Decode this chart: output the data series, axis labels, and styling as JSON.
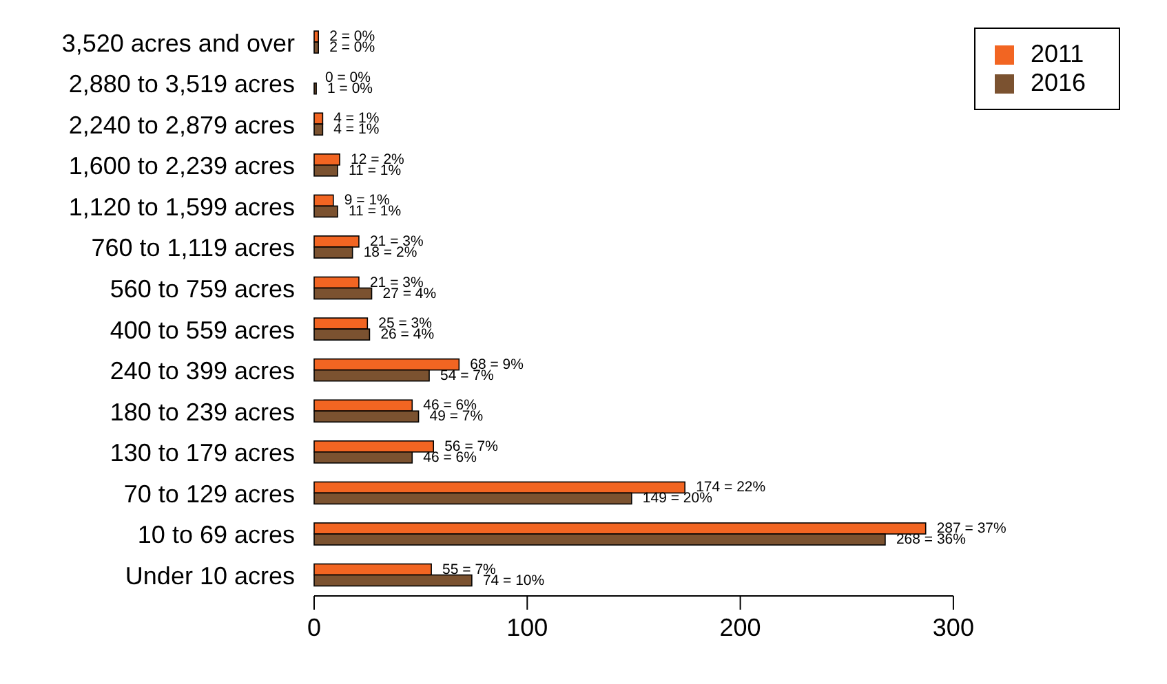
{
  "chart_data": {
    "type": "bar",
    "orientation": "horizontal",
    "categories": [
      "3,520 acres and over",
      "2,880 to 3,519 acres",
      "2,240 to 2,879 acres",
      "1,600 to 2,239 acres",
      "1,120 to 1,599 acres",
      "760 to 1,119 acres",
      "560 to 759 acres",
      "400 to 559 acres",
      "240 to 399 acres",
      "180 to 239 acres",
      "130 to 179 acres",
      "70 to 129 acres",
      "10 to 69 acres",
      "Under 10 acres"
    ],
    "series": [
      {
        "name": "2011",
        "color": "#f26522",
        "values": [
          2,
          0,
          4,
          12,
          9,
          21,
          21,
          25,
          68,
          46,
          56,
          174,
          287,
          55
        ],
        "value_labels": [
          "2 = 0%",
          "0 = 0%",
          "4 = 1%",
          "12 = 2%",
          "9 = 1%",
          "21 = 3%",
          "21 = 3%",
          "25 = 3%",
          "68 = 9%",
          "46 = 6%",
          "56 = 7%",
          "174 = 22%",
          "287 = 37%",
          "55 = 7%"
        ]
      },
      {
        "name": "2016",
        "color": "#7b5230",
        "values": [
          2,
          1,
          4,
          11,
          11,
          18,
          27,
          26,
          54,
          49,
          46,
          149,
          268,
          74
        ],
        "value_labels": [
          "2 = 0%",
          "1 = 0%",
          "4 = 1%",
          "11 = 1%",
          "11 = 1%",
          "18 = 2%",
          "27 = 4%",
          "26 = 4%",
          "54 = 7%",
          "49 = 7%",
          "46 = 6%",
          "149 = 20%",
          "268 = 36%",
          "74 = 10%"
        ]
      }
    ],
    "xlim": [
      0,
      300
    ],
    "xticks": [
      0,
      100,
      200,
      300
    ],
    "grid": false,
    "legend": "top right"
  }
}
